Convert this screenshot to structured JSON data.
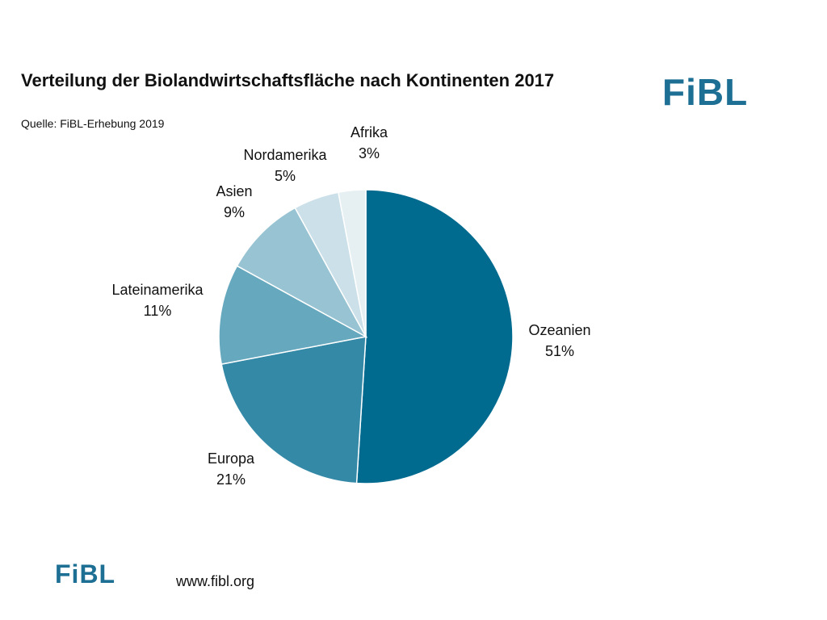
{
  "header": {
    "title": "Verteilung der Biolandwirtschaftsfläche nach Kontinenten 2017",
    "source": "Quelle: FiBL-Erhebung 2019",
    "logo_text": "FiBL"
  },
  "footer": {
    "logo_text": "FiBL",
    "website": "www.fibl.org"
  },
  "chart_data": {
    "type": "pie",
    "title": "Verteilung der Biolandwirtschaftsfläche nach Kontinenten 2017",
    "categories": [
      "Ozeanien",
      "Europa",
      "Lateinamerika",
      "Asien",
      "Nordamerika",
      "Afrika"
    ],
    "values": [
      51,
      21,
      11,
      9,
      5,
      3
    ],
    "value_labels": [
      "51%",
      "21%",
      "11%",
      "9%",
      "5%",
      "3%"
    ],
    "colors": [
      "#006b8f",
      "#3489a7",
      "#66a8be",
      "#98c3d2",
      "#cbe0e8",
      "#e6f0f3"
    ],
    "start_angle": "12 o'clock",
    "direction": "clockwise",
    "legend": "none (direct labels)"
  },
  "colors": {
    "brand": "#1e6f94"
  }
}
